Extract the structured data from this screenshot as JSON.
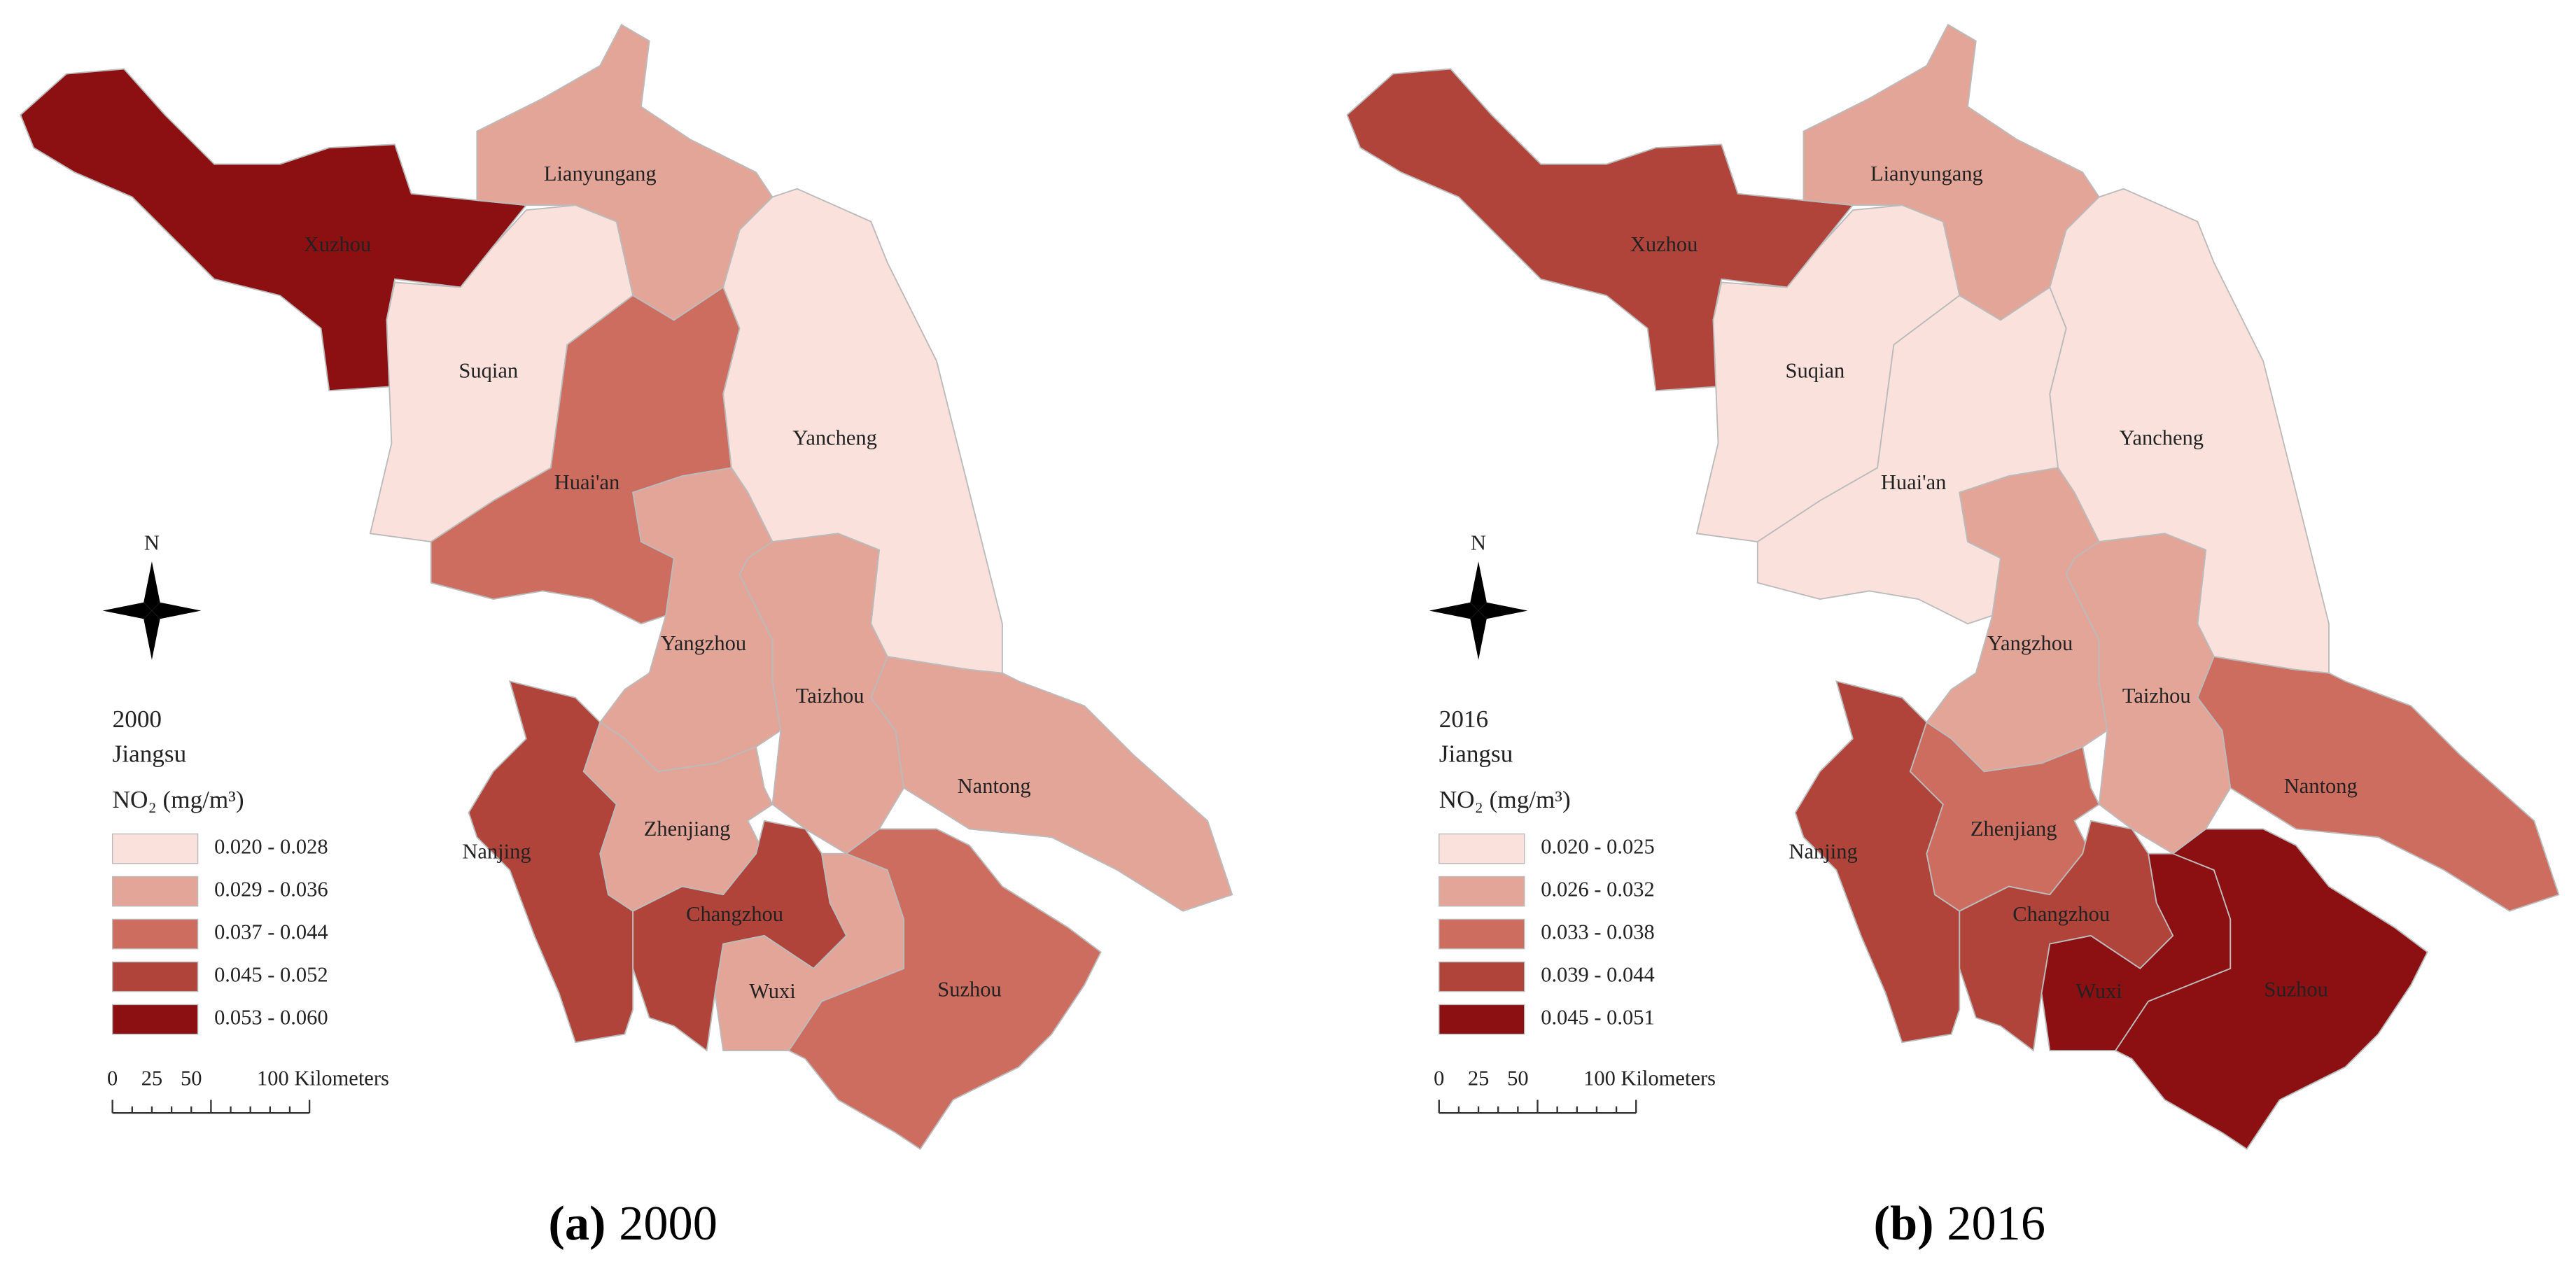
{
  "panels": [
    {
      "caption": {
        "letter": "(a)",
        "text": "2000"
      },
      "legend": {
        "title": [
          "2000",
          "Jiangsu"
        ],
        "unit": "NO₂  (mg/m³)",
        "classes": [
          {
            "label": "0.020 - 0.028",
            "color": "#fae1dc"
          },
          {
            "label": "0.029 - 0.036",
            "color": "#e3a598"
          },
          {
            "label": "0.037 - 0.044",
            "color": "#cc6d5f"
          },
          {
            "label": "0.045 - 0.052",
            "color": "#b0443a"
          },
          {
            "label": "0.053 - 0.060",
            "color": "#8c0f12"
          }
        ]
      },
      "north": "N",
      "scale": [
        "0",
        "25",
        "50",
        "100 Kilometers"
      ],
      "regions": [
        {
          "name": "Xuzhou",
          "color": "#8c0f12"
        },
        {
          "name": "Lianyungang",
          "color": "#e3a598"
        },
        {
          "name": "Suqian",
          "color": "#fae1dc"
        },
        {
          "name": "Huai'an",
          "color": "#cc6d5f"
        },
        {
          "name": "Yancheng",
          "color": "#fae1dc"
        },
        {
          "name": "Yangzhou",
          "color": "#e3a598"
        },
        {
          "name": "Taizhou",
          "color": "#e3a598"
        },
        {
          "name": "Nantong",
          "color": "#e3a598"
        },
        {
          "name": "Nanjing",
          "color": "#b0443a"
        },
        {
          "name": "Zhenjiang",
          "color": "#e3a598"
        },
        {
          "name": "Changzhou",
          "color": "#b0443a"
        },
        {
          "name": "Wuxi",
          "color": "#e3a598"
        },
        {
          "name": "Suzhou",
          "color": "#cc6d5f"
        }
      ]
    },
    {
      "caption": {
        "letter": "(b)",
        "text": "2016"
      },
      "legend": {
        "title": [
          "2016",
          "Jiangsu"
        ],
        "unit": "NO₂  (mg/m³)",
        "classes": [
          {
            "label": "0.020 - 0.025",
            "color": "#fae1dc"
          },
          {
            "label": "0.026 - 0.032",
            "color": "#e3a598"
          },
          {
            "label": "0.033 - 0.038",
            "color": "#cc6d5f"
          },
          {
            "label": "0.039 - 0.044",
            "color": "#b0443a"
          },
          {
            "label": "0.045 - 0.051",
            "color": "#8c0f12"
          }
        ]
      },
      "north": "N",
      "scale": [
        "0",
        "25",
        "50",
        "100 Kilometers"
      ],
      "regions": [
        {
          "name": "Xuzhou",
          "color": "#b0443a"
        },
        {
          "name": "Lianyungang",
          "color": "#e3a598"
        },
        {
          "name": "Suqian",
          "color": "#fae1dc"
        },
        {
          "name": "Huai'an",
          "color": "#fae1dc"
        },
        {
          "name": "Yancheng",
          "color": "#fae1dc"
        },
        {
          "name": "Yangzhou",
          "color": "#e3a598"
        },
        {
          "name": "Taizhou",
          "color": "#e3a598"
        },
        {
          "name": "Nantong",
          "color": "#cc6d5f"
        },
        {
          "name": "Nanjing",
          "color": "#b0443a"
        },
        {
          "name": "Zhenjiang",
          "color": "#cc6d5f"
        },
        {
          "name": "Changzhou",
          "color": "#b0443a"
        },
        {
          "name": "Wuxi",
          "color": "#8c0f12"
        },
        {
          "name": "Suzhou",
          "color": "#8c0f12"
        }
      ]
    }
  ]
}
